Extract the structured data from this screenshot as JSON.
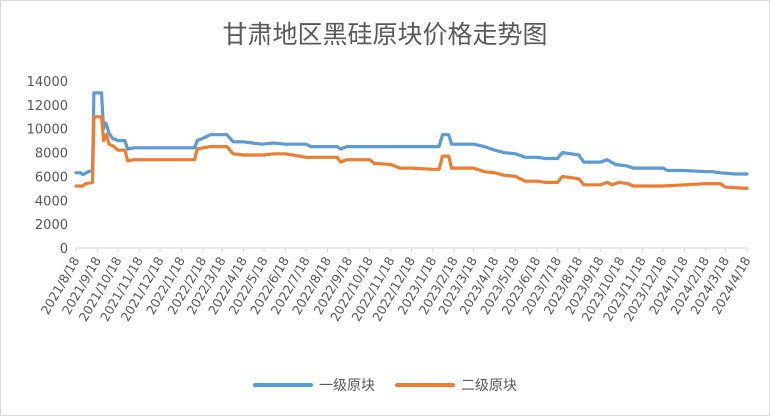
{
  "chart_data": {
    "type": "line",
    "title": "甘肃地区黑硅原块价格走势图",
    "xlabel": "",
    "ylabel": "",
    "ylim": [
      0,
      14000
    ],
    "yticks": [
      0,
      2000,
      4000,
      6000,
      8000,
      10000,
      12000,
      14000
    ],
    "grid": false,
    "legend_position": "bottom",
    "x_start": "2021/8/18",
    "x_end": "2024/4/18",
    "categories": [
      "2021/8/18",
      "2021/9/18",
      "2021/10/18",
      "2021/11/18",
      "2021/12/18",
      "2022/1/18",
      "2022/2/18",
      "2022/3/18",
      "2022/4/18",
      "2022/5/18",
      "2022/6/18",
      "2022/7/18",
      "2022/8/18",
      "2022/9/18",
      "2022/10/18",
      "2022/11/18",
      "2022/12/18",
      "2023/1/18",
      "2023/2/18",
      "2023/3/18",
      "2023/4/18",
      "2023/5/18",
      "2023/6/18",
      "2023/7/18",
      "2023/8/18",
      "2023/9/18",
      "2023/10/18",
      "2023/11/18",
      "2023/12/18",
      "2024/1/18",
      "2024/2/18",
      "2024/3/18",
      "2024/4/18"
    ],
    "series": [
      {
        "name": "一级原块",
        "color": "#5B9BD5",
        "points": [
          [
            "2021/8/18",
            6300
          ],
          [
            "2021/8/25",
            6300
          ],
          [
            "2021/8/28",
            6150
          ],
          [
            "2021/9/5",
            6400
          ],
          [
            "2021/9/11",
            6500
          ],
          [
            "2021/9/13",
            13000
          ],
          [
            "2021/9/24",
            13000
          ],
          [
            "2021/9/27",
            10000
          ],
          [
            "2021/9/29",
            10500
          ],
          [
            "2021/10/1",
            10400
          ],
          [
            "2021/10/5",
            9600
          ],
          [
            "2021/10/10",
            9200
          ],
          [
            "2021/10/18",
            9000
          ],
          [
            "2021/10/28",
            9000
          ],
          [
            "2021/11/1",
            8300
          ],
          [
            "2021/11/10",
            8400
          ],
          [
            "2021/12/18",
            8400
          ],
          [
            "2022/1/18",
            8400
          ],
          [
            "2022/2/6",
            8400
          ],
          [
            "2022/2/10",
            9000
          ],
          [
            "2022/2/18",
            9200
          ],
          [
            "2022/3/1",
            9500
          ],
          [
            "2022/3/25",
            9500
          ],
          [
            "2022/4/3",
            8900
          ],
          [
            "2022/4/18",
            8900
          ],
          [
            "2022/5/1",
            8800
          ],
          [
            "2022/5/15",
            8700
          ],
          [
            "2022/6/1",
            8800
          ],
          [
            "2022/6/18",
            8700
          ],
          [
            "2022/7/18",
            8700
          ],
          [
            "2022/7/25",
            8500
          ],
          [
            "2022/8/18",
            8500
          ],
          [
            "2022/9/1",
            8500
          ],
          [
            "2022/9/6",
            8300
          ],
          [
            "2022/9/15",
            8500
          ],
          [
            "2022/10/18",
            8500
          ],
          [
            "2022/11/18",
            8500
          ],
          [
            "2022/12/18",
            8500
          ],
          [
            "2023/1/18",
            8500
          ],
          [
            "2023/1/27",
            8500
          ],
          [
            "2023/2/1",
            9500
          ],
          [
            "2023/2/10",
            9500
          ],
          [
            "2023/2/14",
            8700
          ],
          [
            "2023/3/18",
            8700
          ],
          [
            "2023/4/3",
            8500
          ],
          [
            "2023/4/18",
            8200
          ],
          [
            "2023/5/1",
            8000
          ],
          [
            "2023/5/18",
            7900
          ],
          [
            "2023/6/1",
            7600
          ],
          [
            "2023/6/18",
            7600
          ],
          [
            "2023/7/1",
            7500
          ],
          [
            "2023/7/18",
            7500
          ],
          [
            "2023/7/25",
            8000
          ],
          [
            "2023/8/18",
            7800
          ],
          [
            "2023/8/25",
            7200
          ],
          [
            "2023/9/18",
            7200
          ],
          [
            "2023/9/28",
            7400
          ],
          [
            "2023/10/10",
            7000
          ],
          [
            "2023/10/25",
            6900
          ],
          [
            "2023/11/5",
            6700
          ],
          [
            "2023/11/18",
            6700
          ],
          [
            "2023/12/18",
            6700
          ],
          [
            "2023/12/25",
            6500
          ],
          [
            "2024/1/18",
            6500
          ],
          [
            "2024/2/18",
            6400
          ],
          [
            "2024/2/28",
            6400
          ],
          [
            "2024/3/10",
            6300
          ],
          [
            "2024/4/1",
            6200
          ],
          [
            "2024/4/18",
            6200
          ]
        ]
      },
      {
        "name": "二级原块",
        "color": "#ED7D31",
        "points": [
          [
            "2021/8/18",
            5200
          ],
          [
            "2021/8/28",
            5200
          ],
          [
            "2021/9/1",
            5400
          ],
          [
            "2021/9/11",
            5500
          ],
          [
            "2021/9/13",
            11000
          ],
          [
            "2021/9/24",
            11000
          ],
          [
            "2021/9/27",
            9000
          ],
          [
            "2021/10/1",
            9500
          ],
          [
            "2021/10/5",
            8700
          ],
          [
            "2021/10/12",
            8500
          ],
          [
            "2021/10/18",
            8200
          ],
          [
            "2021/10/28",
            8200
          ],
          [
            "2021/11/1",
            7300
          ],
          [
            "2021/11/10",
            7400
          ],
          [
            "2021/12/18",
            7400
          ],
          [
            "2022/1/18",
            7400
          ],
          [
            "2022/2/6",
            7400
          ],
          [
            "2022/2/10",
            8300
          ],
          [
            "2022/3/1",
            8500
          ],
          [
            "2022/3/25",
            8500
          ],
          [
            "2022/4/3",
            7900
          ],
          [
            "2022/4/18",
            7800
          ],
          [
            "2022/5/18",
            7800
          ],
          [
            "2022/6/1",
            7900
          ],
          [
            "2022/6/18",
            7900
          ],
          [
            "2022/7/18",
            7600
          ],
          [
            "2022/8/18",
            7600
          ],
          [
            "2022/9/1",
            7600
          ],
          [
            "2022/9/6",
            7200
          ],
          [
            "2022/9/15",
            7400
          ],
          [
            "2022/10/18",
            7400
          ],
          [
            "2022/10/25",
            7100
          ],
          [
            "2022/11/18",
            7000
          ],
          [
            "2022/12/1",
            6700
          ],
          [
            "2022/12/18",
            6700
          ],
          [
            "2023/1/18",
            6600
          ],
          [
            "2023/1/27",
            6600
          ],
          [
            "2023/2/1",
            7700
          ],
          [
            "2023/2/10",
            7700
          ],
          [
            "2023/2/14",
            6700
          ],
          [
            "2023/3/18",
            6700
          ],
          [
            "2023/4/3",
            6400
          ],
          [
            "2023/4/18",
            6300
          ],
          [
            "2023/5/1",
            6100
          ],
          [
            "2023/5/18",
            6000
          ],
          [
            "2023/6/1",
            5600
          ],
          [
            "2023/6/18",
            5600
          ],
          [
            "2023/7/1",
            5500
          ],
          [
            "2023/7/18",
            5500
          ],
          [
            "2023/7/25",
            6000
          ],
          [
            "2023/8/18",
            5800
          ],
          [
            "2023/8/25",
            5300
          ],
          [
            "2023/9/18",
            5300
          ],
          [
            "2023/9/28",
            5500
          ],
          [
            "2023/10/5",
            5300
          ],
          [
            "2023/10/15",
            5500
          ],
          [
            "2023/10/28",
            5400
          ],
          [
            "2023/11/5",
            5200
          ],
          [
            "2023/11/18",
            5200
          ],
          [
            "2023/12/18",
            5200
          ],
          [
            "2024/1/18",
            5300
          ],
          [
            "2024/2/18",
            5400
          ],
          [
            "2024/3/10",
            5400
          ],
          [
            "2024/3/18",
            5100
          ],
          [
            "2024/4/18",
            5000
          ]
        ]
      }
    ]
  }
}
